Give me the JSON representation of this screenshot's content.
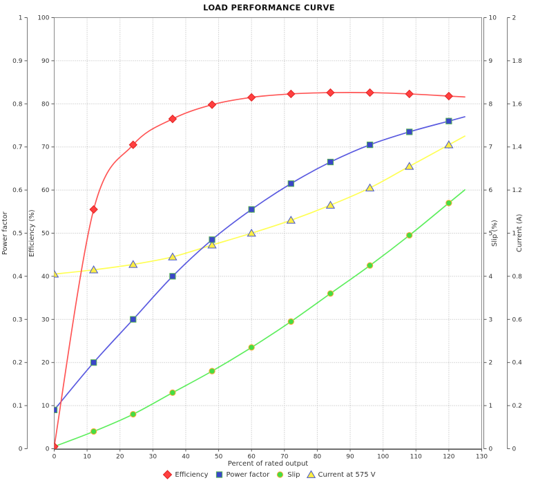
{
  "chart_data": {
    "type": "line",
    "title": "LOAD PERFORMANCE CURVE",
    "xlabel": "Percent of rated output",
    "x_axis": {
      "min": 0,
      "max": 130,
      "tick": 10
    },
    "x": [
      0,
      12,
      24,
      36,
      48,
      60,
      72,
      84,
      96,
      108,
      120
    ],
    "grid": true,
    "legend_position": "bottom",
    "axes": {
      "power_factor": {
        "label": "Power factor",
        "min": 0,
        "max": 1,
        "tick": 0.1,
        "side": "left"
      },
      "efficiency": {
        "label": "Efficiency (%)",
        "min": 0,
        "max": 100,
        "tick": 10,
        "side": "left"
      },
      "slip": {
        "label": "Slip (%)",
        "min": 0,
        "max": 10,
        "tick": 1,
        "side": "right"
      },
      "current": {
        "label": "Current (A)",
        "min": 0,
        "max": 2,
        "tick": 0.2,
        "side": "right"
      }
    },
    "series": [
      {
        "id": "efficiency",
        "name": "Efficiency",
        "axis": "efficiency",
        "marker": "diamond",
        "line_color": "#ff5555",
        "fill_color": "#ff4040",
        "stroke_color": "#e02020",
        "values": [
          0.5,
          55.5,
          70.5,
          76.5,
          79.8,
          81.5,
          82.3,
          82.6,
          82.6,
          82.3,
          81.8
        ]
      },
      {
        "id": "power_factor",
        "name": "Power factor",
        "axis": "power_factor",
        "marker": "square",
        "line_color": "#5a5ae0",
        "fill_color": "#3a46c8",
        "stroke_color": "#55b055",
        "values": [
          0.09,
          0.2,
          0.3,
          0.4,
          0.485,
          0.555,
          0.615,
          0.665,
          0.705,
          0.735,
          0.76
        ]
      },
      {
        "id": "slip",
        "name": "Slip",
        "axis": "slip",
        "marker": "circle",
        "line_color": "#5dee5d",
        "fill_color": "#44dd44",
        "stroke_color": "#ffaa33",
        "values": [
          0.05,
          0.4,
          0.8,
          1.3,
          1.8,
          2.35,
          2.95,
          3.6,
          4.25,
          4.95,
          5.7
        ]
      },
      {
        "id": "current",
        "name": "Current at 575 V",
        "axis": "current",
        "marker": "triangle",
        "line_color": "#ffff55",
        "fill_color": "#ffee44",
        "stroke_color": "#4455cc",
        "values": [
          0.81,
          0.83,
          0.855,
          0.89,
          0.945,
          1.0,
          1.06,
          1.13,
          1.21,
          1.31,
          1.41
        ]
      }
    ]
  }
}
